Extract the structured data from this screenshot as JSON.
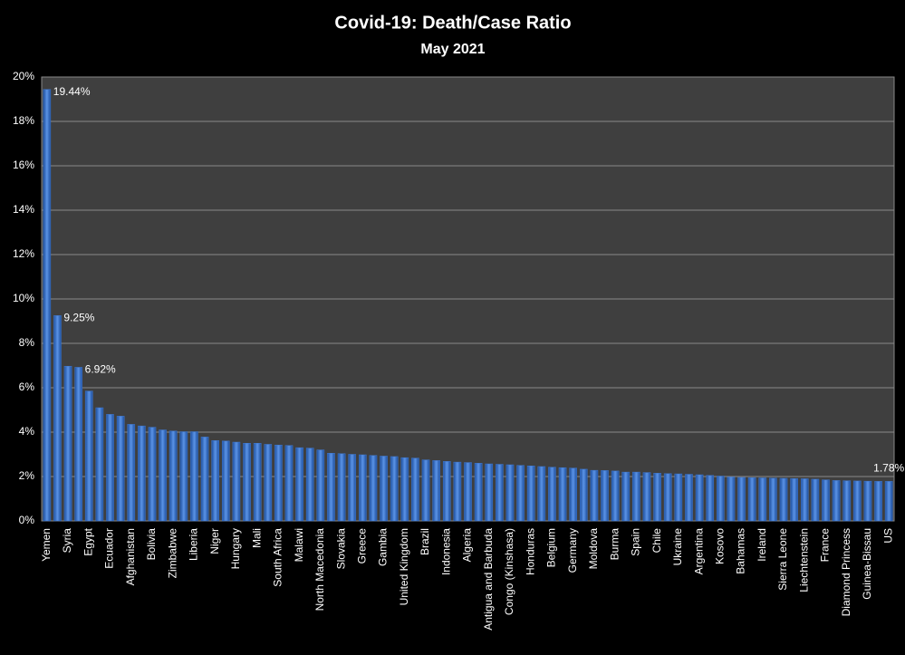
{
  "chart_data": {
    "type": "bar",
    "title": "Covid-19: Death/Case Ratio",
    "subtitle": "May 2021",
    "categories": [
      "Yemen",
      null,
      "Syria",
      null,
      "Egypt",
      null,
      "Ecuador",
      null,
      "Afghanistan",
      null,
      "Bolivia",
      null,
      "Zimbabwe",
      null,
      "Liberia",
      null,
      "Niger",
      null,
      "Hungary",
      null,
      "Mali",
      null,
      "South Africa",
      null,
      "Malawi",
      null,
      "North Macedonia",
      null,
      "Slovakia",
      null,
      "Greece",
      null,
      "Gambia",
      null,
      "United Kingdom",
      null,
      "Brazil",
      null,
      "Indonesia",
      null,
      "Algeria",
      null,
      "Antigua and Barbuda",
      null,
      "Congo (Kinshasa)",
      null,
      "Honduras",
      null,
      "Belgium",
      null,
      "Germany",
      null,
      "Moldova",
      null,
      "Burma",
      null,
      "Spain",
      null,
      "Chile",
      null,
      "Ukraine",
      null,
      "Argentina",
      null,
      "Kosovo",
      null,
      "Bahamas",
      null,
      "Ireland",
      null,
      "Sierra Leone",
      null,
      "Liechtenstein",
      null,
      "France",
      null,
      "Diamond Princess",
      null,
      "Guinea-Bissau",
      null,
      "US"
    ],
    "values": [
      19.44,
      9.25,
      6.97,
      6.92,
      5.85,
      5.1,
      4.8,
      4.72,
      4.35,
      4.28,
      4.22,
      4.1,
      4.05,
      4.02,
      4.02,
      3.78,
      3.62,
      3.6,
      3.55,
      3.5,
      3.5,
      3.45,
      3.42,
      3.4,
      3.3,
      3.28,
      3.2,
      3.05,
      3.03,
      3.0,
      2.98,
      2.95,
      2.92,
      2.9,
      2.85,
      2.83,
      2.75,
      2.72,
      2.68,
      2.65,
      2.63,
      2.6,
      2.57,
      2.55,
      2.53,
      2.5,
      2.48,
      2.45,
      2.42,
      2.4,
      2.38,
      2.33,
      2.28,
      2.27,
      2.25,
      2.2,
      2.2,
      2.18,
      2.15,
      2.13,
      2.12,
      2.1,
      2.08,
      2.05,
      2.02,
      1.98,
      1.96,
      1.95,
      1.94,
      1.93,
      1.92,
      1.91,
      1.9,
      1.88,
      1.85,
      1.82,
      1.81,
      1.8,
      1.79,
      1.78,
      1.78
    ],
    "value_labels": [
      "19.44%",
      "9.25%",
      null,
      "6.92%",
      null,
      null,
      null,
      null,
      null,
      null,
      null,
      null,
      null,
      null,
      null,
      null,
      null,
      null,
      null,
      null,
      null,
      null,
      null,
      null,
      null,
      null,
      null,
      null,
      null,
      null,
      null,
      null,
      null,
      null,
      null,
      null,
      null,
      null,
      null,
      null,
      null,
      null,
      null,
      null,
      null,
      null,
      null,
      null,
      null,
      null,
      null,
      null,
      null,
      null,
      null,
      null,
      null,
      null,
      null,
      null,
      null,
      null,
      null,
      null,
      null,
      null,
      null,
      null,
      null,
      null,
      null,
      null,
      null,
      null,
      null,
      null,
      null,
      null,
      null,
      null,
      "1.78%"
    ],
    "color": "#3f78d0",
    "ylim": [
      0,
      20
    ],
    "yticks": [
      {
        "value": 0,
        "label": "0%"
      },
      {
        "value": 2,
        "label": "2%"
      },
      {
        "value": 4,
        "label": "4%"
      },
      {
        "value": 6,
        "label": "6%"
      },
      {
        "value": 8,
        "label": "8%"
      },
      {
        "value": 10,
        "label": "10%"
      },
      {
        "value": 12,
        "label": "12%"
      },
      {
        "value": 14,
        "label": "14%"
      },
      {
        "value": 16,
        "label": "16%"
      },
      {
        "value": 18,
        "label": "18%"
      },
      {
        "value": 20,
        "label": "20%"
      }
    ],
    "grid": true
  }
}
